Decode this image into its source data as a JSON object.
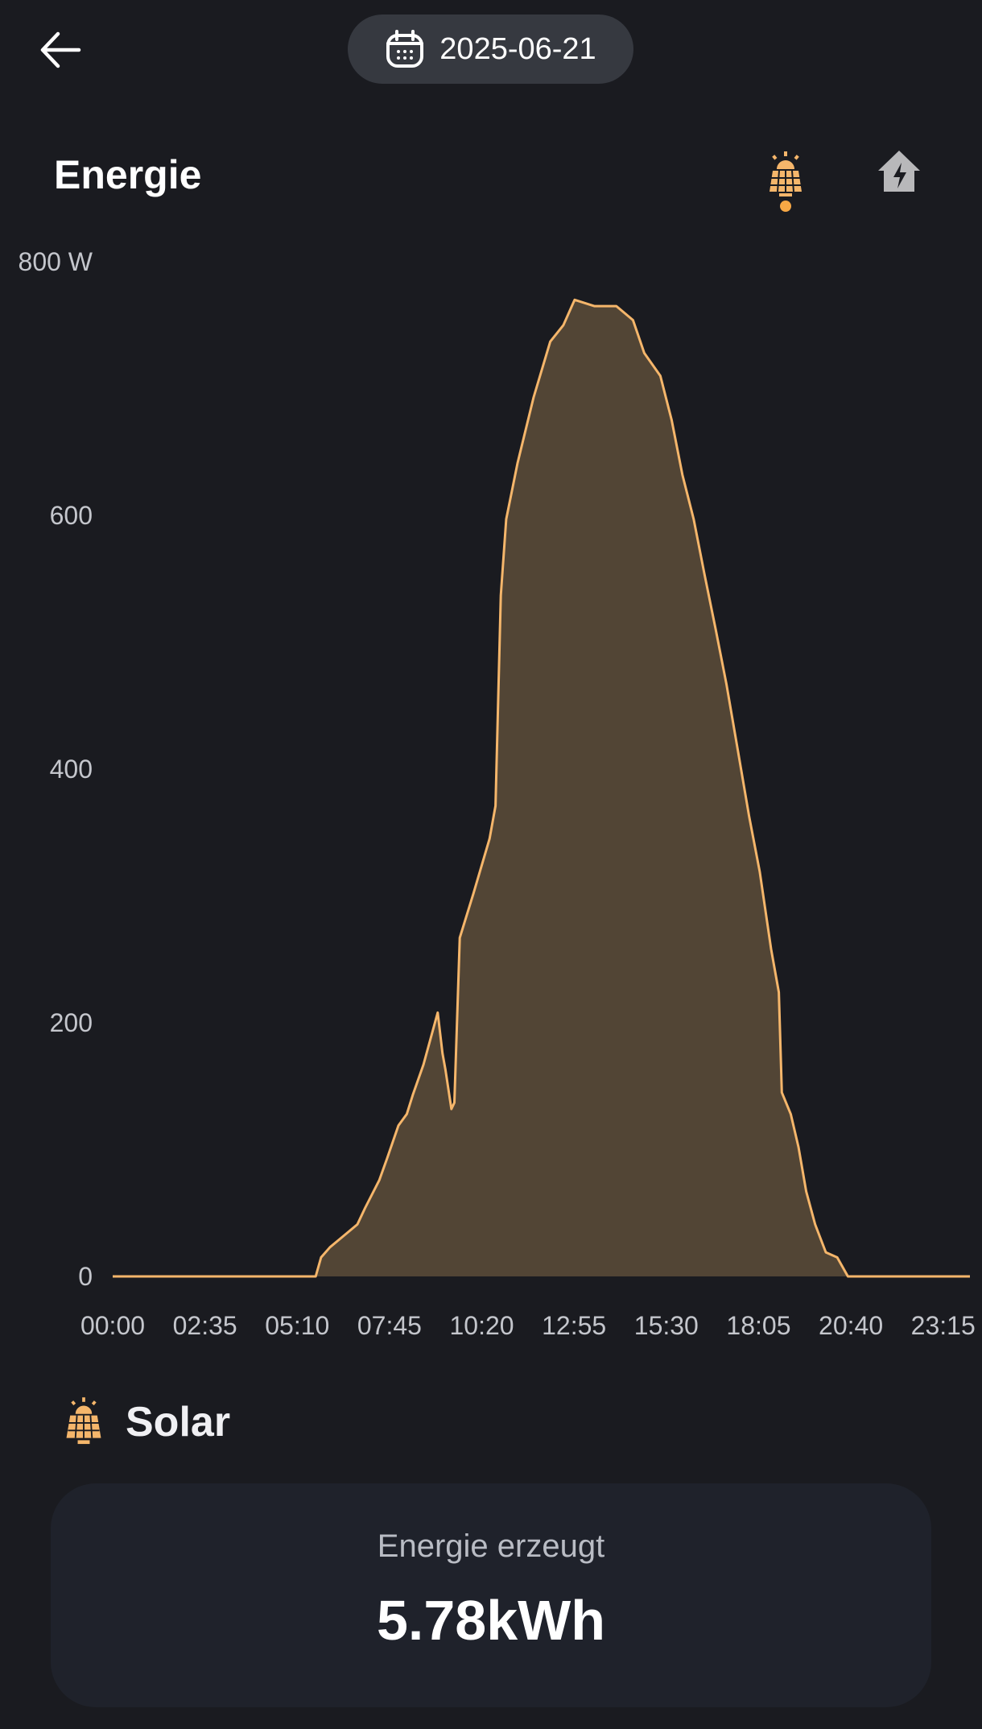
{
  "header": {
    "back_icon": "arrow-left-icon",
    "date": "2025-06-21",
    "calendar_icon": "calendar-icon"
  },
  "title": "Energie",
  "view_toggle": {
    "active": "solar",
    "items": [
      {
        "name": "solar",
        "icon": "solar-panel-icon"
      },
      {
        "name": "home",
        "icon": "house-lightning-icon"
      }
    ]
  },
  "colors": {
    "accent": "#f7a845",
    "line": "#f5b66b",
    "fill": "#524535",
    "background": "#1a1b20",
    "card": "#1f222b",
    "pill": "#363940"
  },
  "chart_data": {
    "type": "area",
    "ylim": [
      0,
      800
    ],
    "y_unit": "W",
    "y_ticks": [
      "800 W",
      "600",
      "400",
      "200",
      "0"
    ],
    "y_tick_values": [
      800,
      600,
      400,
      200,
      0
    ],
    "x_ticks": [
      "00:00",
      "02:35",
      "05:10",
      "07:45",
      "10:20",
      "12:55",
      "15:30",
      "18:05",
      "20:40",
      "23:15"
    ],
    "xlim": [
      "00:00",
      "24:00"
    ],
    "grid": false,
    "series": [
      {
        "x": [
          "00:00",
          "05:41",
          "05:50",
          "06:05",
          "06:33",
          "06:51",
          "07:04",
          "07:28",
          "07:41",
          "08:00",
          "08:14",
          "08:24",
          "08:42",
          "09:06",
          "09:14",
          "09:19",
          "09:29",
          "09:34",
          "09:43",
          "10:06",
          "10:33",
          "10:43",
          "10:52",
          "11:01",
          "11:20",
          "11:47",
          "12:15",
          "12:37",
          "12:56",
          "13:29",
          "14:06",
          "14:34",
          "14:53",
          "15:20",
          "15:39",
          "15:57",
          "16:16",
          "16:34",
          "16:53",
          "17:11",
          "17:30",
          "17:49",
          "18:07",
          "18:26",
          "18:39",
          "18:44",
          "18:59",
          "19:12",
          "19:25",
          "19:40",
          "19:58",
          "20:17",
          "20:35",
          "24:00"
        ],
        "values": [
          0,
          0,
          15,
          23,
          34,
          41,
          54,
          76,
          93,
          119,
          128,
          143,
          167,
          208,
          176,
          163,
          132,
          137,
          267,
          302,
          345,
          371,
          537,
          597,
          641,
          693,
          737,
          750,
          770,
          765,
          765,
          754,
          728,
          710,
          675,
          632,
          597,
          554,
          510,
          467,
          415,
          363,
          319,
          258,
          224,
          145,
          128,
          102,
          67,
          41,
          19,
          15,
          0,
          0
        ]
      }
    ]
  },
  "section": {
    "title": "Solar",
    "icon": "solar-panel-icon"
  },
  "card": {
    "label": "Energie erzeugt",
    "value": "5.78kWh"
  }
}
